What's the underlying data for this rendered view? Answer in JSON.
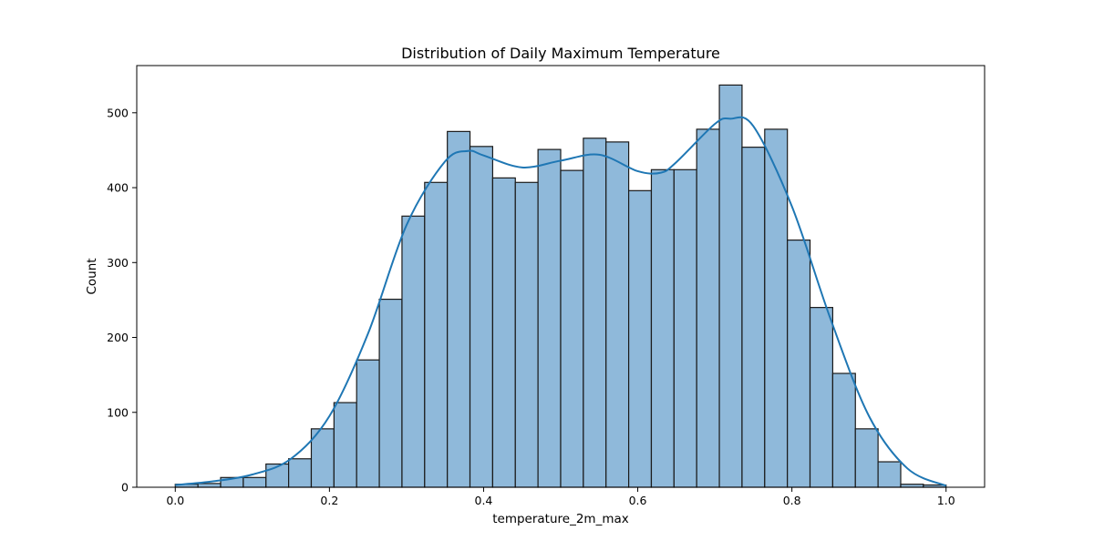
{
  "chart_data": {
    "type": "bar",
    "subtype": "histogram",
    "title": "Distribution of Daily Maximum Temperature",
    "xlabel": "temperature_2m_max",
    "ylabel": "Count",
    "xlim": [
      -0.05,
      1.05
    ],
    "ylim": [
      0,
      563
    ],
    "x_ticks": [
      0.0,
      0.2,
      0.4,
      0.6,
      0.8,
      1.0
    ],
    "x_tick_labels": [
      "0.0",
      "0.2",
      "0.4",
      "0.6",
      "0.8",
      "1.0"
    ],
    "y_ticks": [
      0,
      100,
      200,
      300,
      400,
      500
    ],
    "y_tick_labels": [
      "0",
      "100",
      "200",
      "300",
      "400",
      "500"
    ],
    "grid": false,
    "legend": "none",
    "bin_range": [
      0.0,
      1.0
    ],
    "bin_count": 34,
    "counts": [
      4,
      5,
      13,
      13,
      31,
      38,
      78,
      113,
      170,
      251,
      362,
      407,
      475,
      455,
      413,
      407,
      451,
      423,
      466,
      461,
      396,
      424,
      424,
      478,
      537,
      454,
      478,
      330,
      240,
      152,
      78,
      34,
      4,
      3
    ],
    "kde": {
      "x": [
        0.0,
        0.05,
        0.1,
        0.15,
        0.2,
        0.25,
        0.3,
        0.35,
        0.38,
        0.4,
        0.45,
        0.5,
        0.55,
        0.6,
        0.63,
        0.65,
        0.7,
        0.72,
        0.75,
        0.8,
        0.85,
        0.9,
        0.95,
        1.0
      ],
      "y": [
        3,
        8,
        17,
        38,
        95,
        205,
        350,
        435,
        449,
        443,
        427,
        436,
        444,
        422,
        420,
        434,
        485,
        492,
        482,
        375,
        225,
        95,
        25,
        2
      ]
    },
    "colors": {
      "bar_fill": "#8fb9da",
      "bar_edge": "#1a1a1a",
      "kde_line": "#1f77b4",
      "axis": "#000000"
    }
  }
}
